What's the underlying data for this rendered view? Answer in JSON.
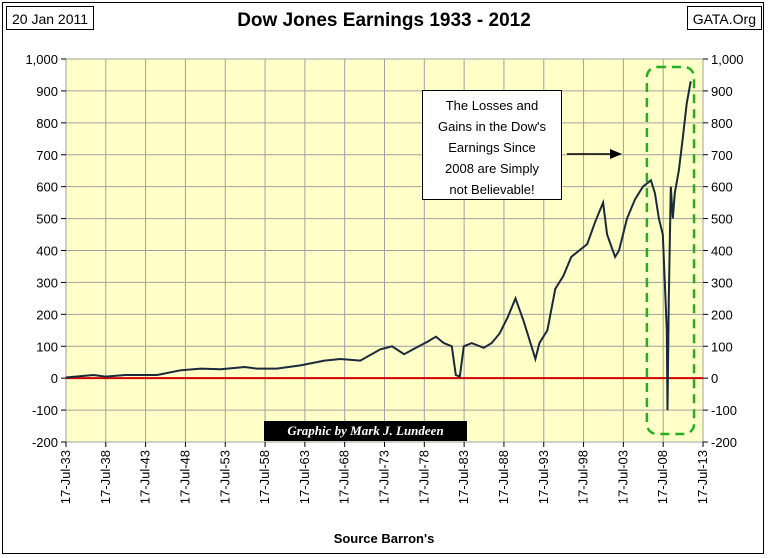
{
  "header": {
    "date": "20 Jan 2011",
    "site": "GATA.Org"
  },
  "footer": {
    "source": "Source Barron's"
  },
  "annotations": {
    "credit": "Graphic by Mark J. Lundeen",
    "note_lines": [
      "The Losses and",
      "Gains in the Dow's",
      "Earnings Since",
      "2008 are Simply",
      "not Believable!"
    ]
  },
  "colors": {
    "plot_bg": "#ffffc8",
    "line": "#1a2a3a",
    "zero_line": "#d00000",
    "highlight": "#20b020",
    "grid": "#a0a0a0"
  },
  "chart_data": {
    "type": "line",
    "title": "Dow Jones Earnings 1933 - 2012",
    "xlabel": "",
    "ylabel": "",
    "ylim": [
      -200,
      1000
    ],
    "yticks": [
      -200,
      -100,
      0,
      100,
      200,
      300,
      400,
      500,
      600,
      700,
      800,
      900,
      1000
    ],
    "ytick_labels": [
      "-200",
      "-100",
      "0",
      "100",
      "200",
      "300",
      "400",
      "500",
      "600",
      "700",
      "800",
      "900",
      "1,000"
    ],
    "x_range": [
      "1933-07-17",
      "2013-07-17"
    ],
    "x_tick_labels": [
      "17-Jul-33",
      "17-Jul-38",
      "17-Jul-43",
      "17-Jul-48",
      "17-Jul-53",
      "17-Jul-58",
      "17-Jul-63",
      "17-Jul-68",
      "17-Jul-73",
      "17-Jul-78",
      "17-Jul-83",
      "17-Jul-88",
      "17-Jul-93",
      "17-Jul-98",
      "17-Jul-03",
      "17-Jul-08",
      "17-Jul-13"
    ],
    "grid": true,
    "reference_line": 0,
    "highlight_range": [
      "2006-07",
      "2012-06"
    ],
    "series": [
      {
        "x": [
          "1933-07",
          "1937-01",
          "1938-07",
          "1941-01",
          "1945-01",
          "1948-01",
          "1950-07",
          "1953-01",
          "1956-01",
          "1957-07",
          "1960-01",
          "1963-01",
          "1966-01",
          "1968-01",
          "1970-07",
          "1973-01",
          "1974-07",
          "1976-01",
          "1977-07",
          "1979-01",
          "1980-01",
          "1981-01",
          "1982-01",
          "1982-07",
          "1983-01",
          "1983-07",
          "1984-07",
          "1986-01",
          "1987-01",
          "1988-01",
          "1989-01",
          "1990-01",
          "1991-01",
          "1992-01",
          "1992-07",
          "1993-01",
          "1994-01",
          "1995-01",
          "1996-01",
          "1997-01",
          "1998-01",
          "1999-01",
          "2000-01",
          "2001-01",
          "2001-07",
          "2002-07",
          "2003-01",
          "2004-01",
          "2005-01",
          "2006-01",
          "2007-01",
          "2007-07",
          "2008-01",
          "2008-07",
          "2009-01",
          "2009-02",
          "2009-04",
          "2009-07",
          "2009-10",
          "2010-01",
          "2010-07",
          "2011-01",
          "2011-07",
          "2012-01"
        ],
        "y": [
          2,
          10,
          5,
          10,
          10,
          25,
          30,
          28,
          35,
          30,
          30,
          40,
          55,
          60,
          55,
          90,
          100,
          75,
          95,
          115,
          130,
          110,
          100,
          10,
          5,
          100,
          110,
          95,
          110,
          140,
          190,
          250,
          180,
          100,
          60,
          110,
          150,
          280,
          320,
          380,
          400,
          420,
          490,
          550,
          450,
          380,
          400,
          500,
          560,
          600,
          620,
          580,
          500,
          450,
          150,
          -100,
          250,
          600,
          500,
          580,
          650,
          750,
          860,
          930
        ]
      }
    ]
  }
}
